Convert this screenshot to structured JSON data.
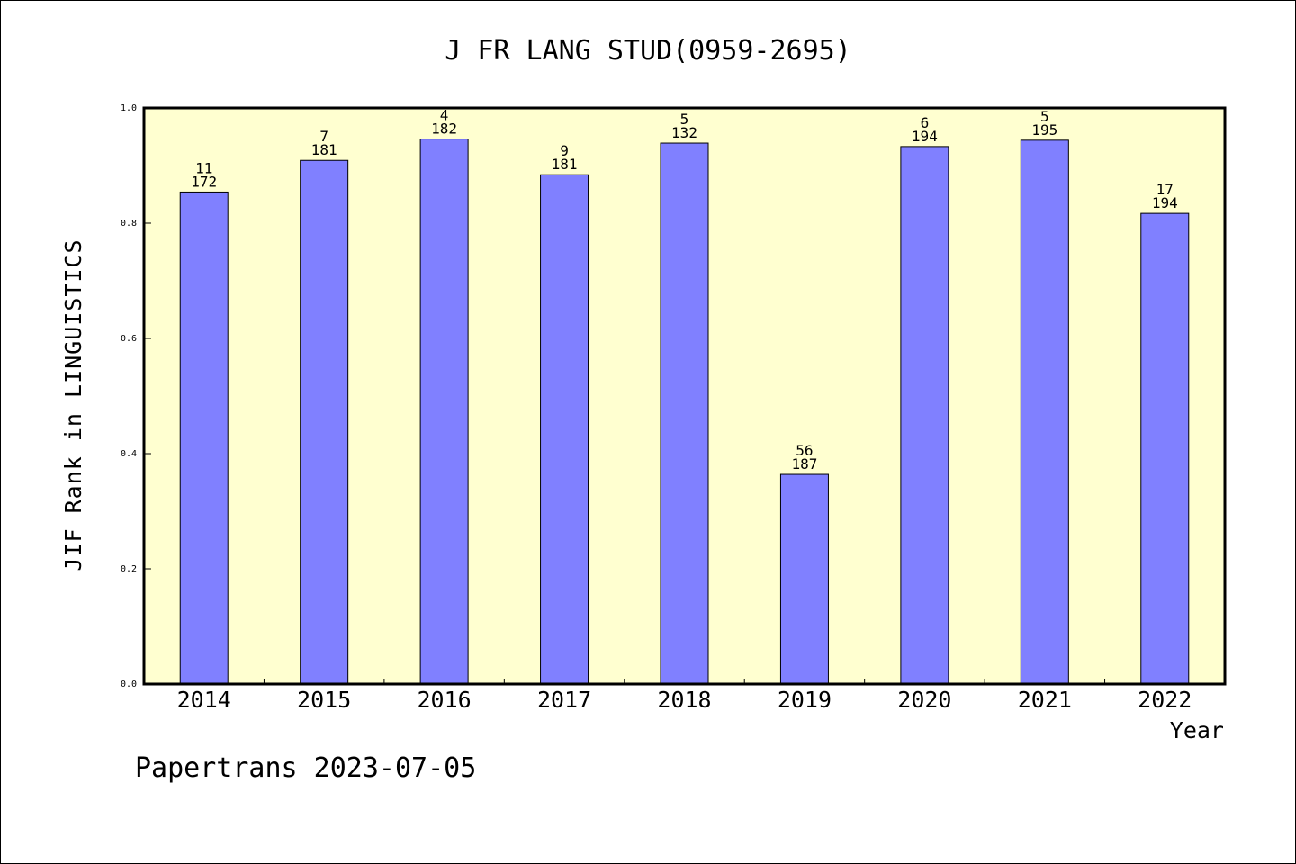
{
  "chart_data": {
    "type": "bar",
    "title": "J FR LANG STUD(0959-2695)",
    "xlabel": "Year",
    "ylabel": "JIF Rank in LINGUISTICS",
    "categories": [
      "2014",
      "2015",
      "2016",
      "2017",
      "2018",
      "2019",
      "2020",
      "2021",
      "2022"
    ],
    "values": [
      0.854,
      0.909,
      0.946,
      0.884,
      0.939,
      0.364,
      0.933,
      0.944,
      0.817
    ],
    "rank": [
      "11",
      "7",
      "4",
      "9",
      "5",
      "56",
      "6",
      "5",
      "17"
    ],
    "total": [
      "172",
      "181",
      "182",
      "181",
      "132",
      "187",
      "194",
      "195",
      "194"
    ],
    "ylim": [
      0,
      1.0
    ],
    "yticks": [
      "0.0",
      "0.2",
      "0.4",
      "0.6",
      "0.8",
      "1.0"
    ],
    "grid": false,
    "colors": {
      "bar": "#8080ff",
      "plot_background": "#ffffd0"
    }
  },
  "footer": "Papertrans 2023-07-05"
}
